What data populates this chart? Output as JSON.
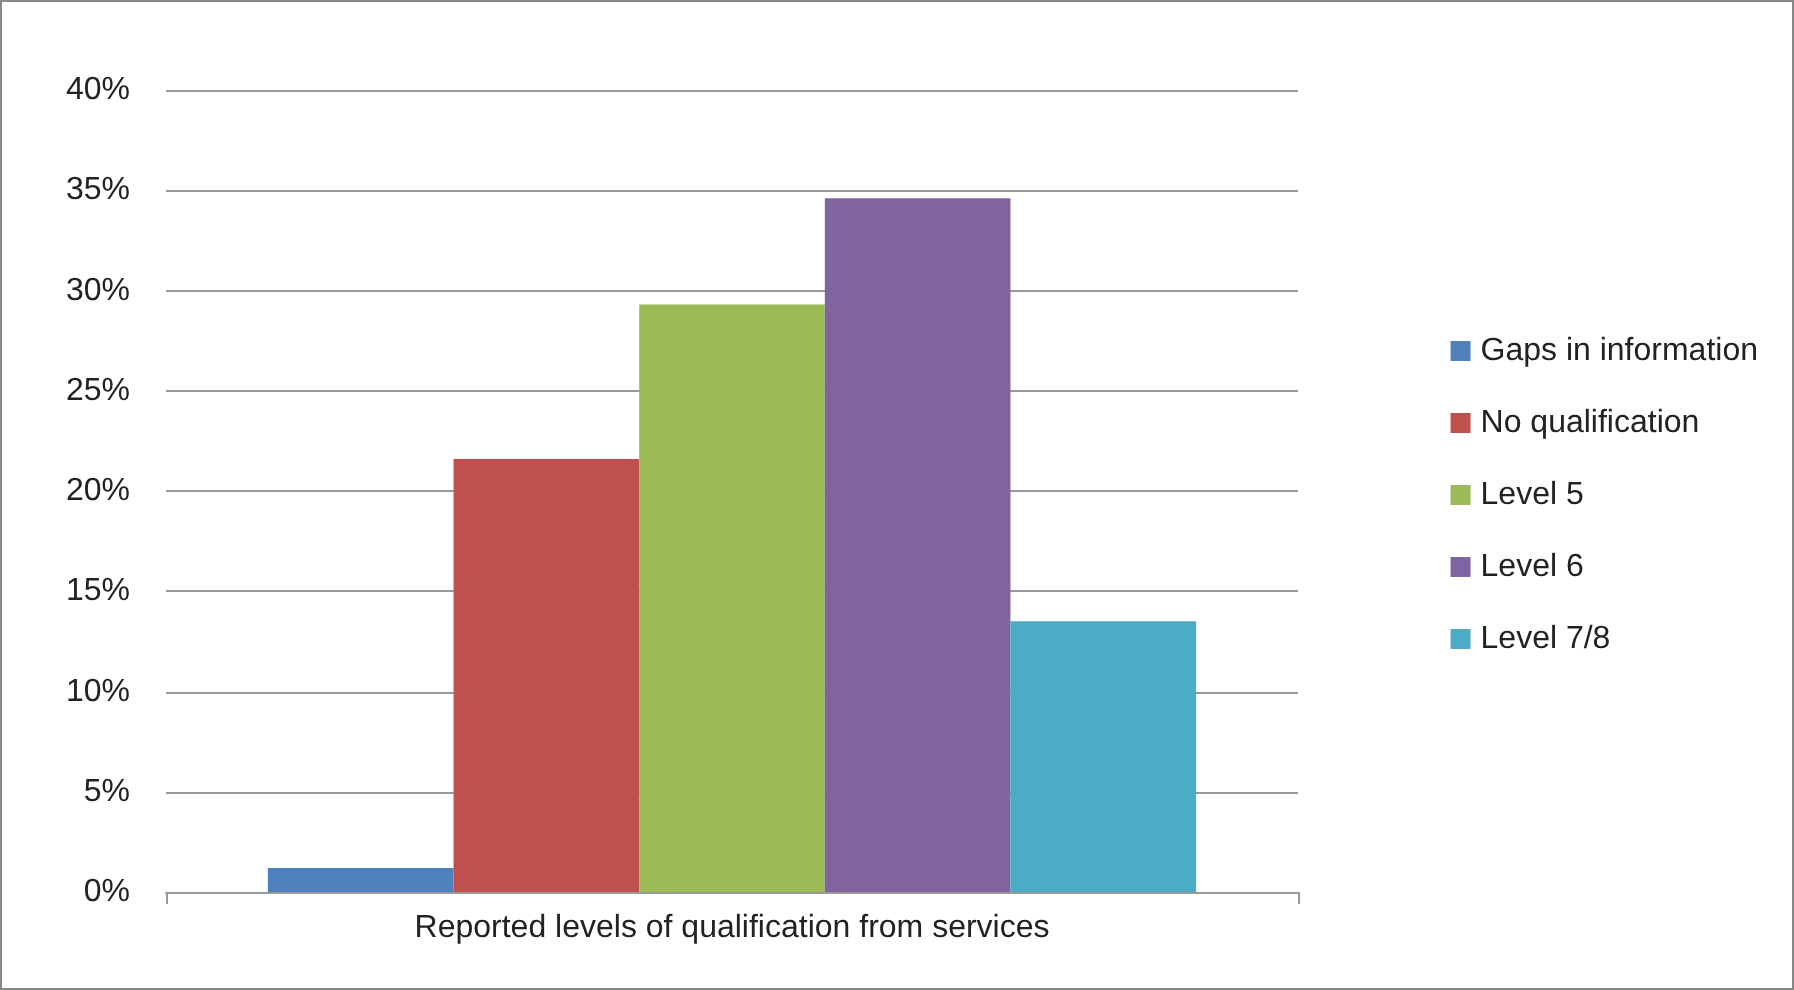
{
  "chart_data": {
    "type": "bar",
    "categories": [
      "Reported levels of qualification from services"
    ],
    "series": [
      {
        "name": "Gaps in information",
        "color": "#4f81bd",
        "values": [
          1.2
        ]
      },
      {
        "name": "No qualification",
        "color": "#c0504d",
        "values": [
          21.6
        ]
      },
      {
        "name": "Level 5",
        "color": "#9bbb59",
        "values": [
          29.3
        ]
      },
      {
        "name": "Level 6",
        "color": "#8064a2",
        "values": [
          34.6
        ]
      },
      {
        "name": "Level 7/8",
        "color": "#4bacc6",
        "values": [
          13.5
        ]
      }
    ],
    "ylim": [
      0,
      40
    ],
    "yticks": [
      {
        "value": 0,
        "label": "0%"
      },
      {
        "value": 5,
        "label": "5%"
      },
      {
        "value": 10,
        "label": "10%"
      },
      {
        "value": 15,
        "label": "15%"
      },
      {
        "value": 20,
        "label": "20%"
      },
      {
        "value": 25,
        "label": "25%"
      },
      {
        "value": 30,
        "label": "30%"
      },
      {
        "value": 35,
        "label": "35%"
      },
      {
        "value": 40,
        "label": "40%"
      }
    ],
    "grid": "y",
    "legend": "right"
  }
}
